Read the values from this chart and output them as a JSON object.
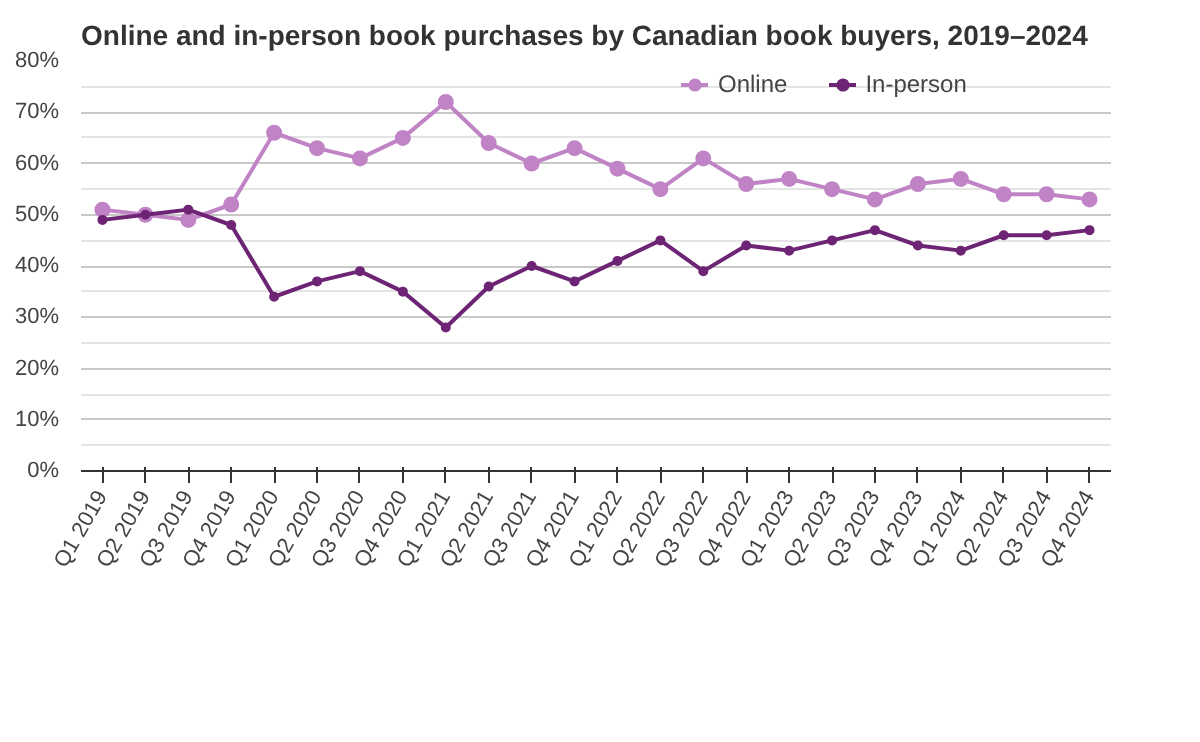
{
  "chart_data": {
    "type": "line",
    "title": "Online and in-person book purchases by Canadian book buyers, 2019–2024",
    "categories": [
      "Q1 2019",
      "Q2 2019",
      "Q3 2019",
      "Q4 2019",
      "Q1 2020",
      "Q2 2020",
      "Q3 2020",
      "Q4 2020",
      "Q1 2021",
      "Q2 2021",
      "Q3 2021",
      "Q4 2021",
      "Q1 2022",
      "Q2 2022",
      "Q3 2022",
      "Q4 2022",
      "Q1 2023",
      "Q2 2023",
      "Q3 2023",
      "Q4 2023",
      "Q1 2024",
      "Q2 2024",
      "Q3 2024",
      "Q4 2024"
    ],
    "series": [
      {
        "name": "Online",
        "color": "#c084c6",
        "values": [
          51,
          50,
          49,
          52,
          66,
          63,
          61,
          65,
          72,
          64,
          60,
          63,
          59,
          55,
          61,
          56,
          57,
          55,
          53,
          56,
          57,
          54,
          54,
          53
        ]
      },
      {
        "name": "In-person",
        "color": "#6e2474",
        "values": [
          49,
          50,
          51,
          48,
          34,
          37,
          39,
          35,
          28,
          36,
          40,
          37,
          41,
          45,
          39,
          44,
          43,
          45,
          47,
          44,
          43,
          46,
          46,
          47
        ]
      }
    ],
    "ylim": [
      0,
      80
    ],
    "yticks": [
      {
        "value": 0,
        "label": "0%"
      },
      {
        "value": 5,
        "label": null
      },
      {
        "value": 10,
        "label": "10%"
      },
      {
        "value": 15,
        "label": null
      },
      {
        "value": 20,
        "label": "20%"
      },
      {
        "value": 25,
        "label": null
      },
      {
        "value": 30,
        "label": "30%"
      },
      {
        "value": 35,
        "label": null
      },
      {
        "value": 40,
        "label": "40%"
      },
      {
        "value": 45,
        "label": null
      },
      {
        "value": 50,
        "label": "50%"
      },
      {
        "value": 55,
        "label": null
      },
      {
        "value": 60,
        "label": "60%"
      },
      {
        "value": 65,
        "label": null
      },
      {
        "value": 70,
        "label": "70%"
      },
      {
        "value": 75,
        "label": null
      },
      {
        "value": 80,
        "label": "80%"
      }
    ],
    "grid": "y",
    "legend": "top",
    "marker": "circle",
    "line_style": "solid"
  }
}
